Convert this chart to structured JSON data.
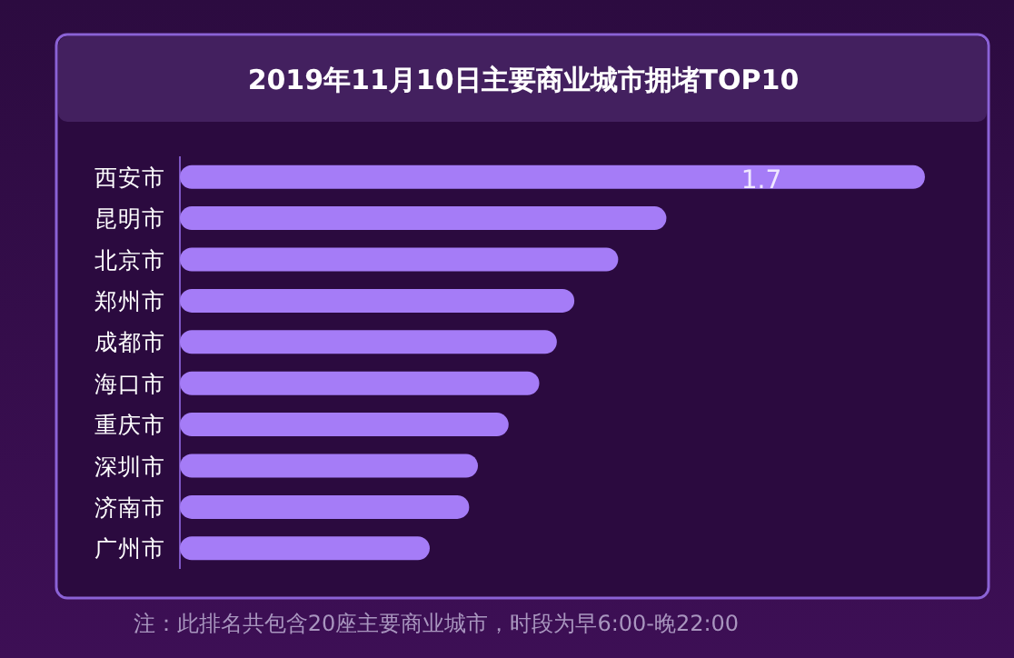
{
  "chart_data": {
    "type": "bar",
    "orientation": "horizontal",
    "title": "2019年11月10日主要商业城市拥堵TOP10",
    "categories": [
      "西安市",
      "昆明市",
      "北京市",
      "郑州市",
      "成都市",
      "海口市",
      "重庆市",
      "深圳市",
      "济南市",
      "广州市"
    ],
    "values": [
      1.7,
      1.11,
      1.0,
      0.9,
      0.86,
      0.82,
      0.75,
      0.68,
      0.66,
      0.57
    ],
    "value_labels": [
      "1.7",
      null,
      null,
      null,
      null,
      null,
      null,
      null,
      null,
      null
    ],
    "color": "#a57cf7",
    "annotations": [
      "注：此排名共包含20座主要商业城市，时段为早6:00-晚22:00"
    ]
  }
}
